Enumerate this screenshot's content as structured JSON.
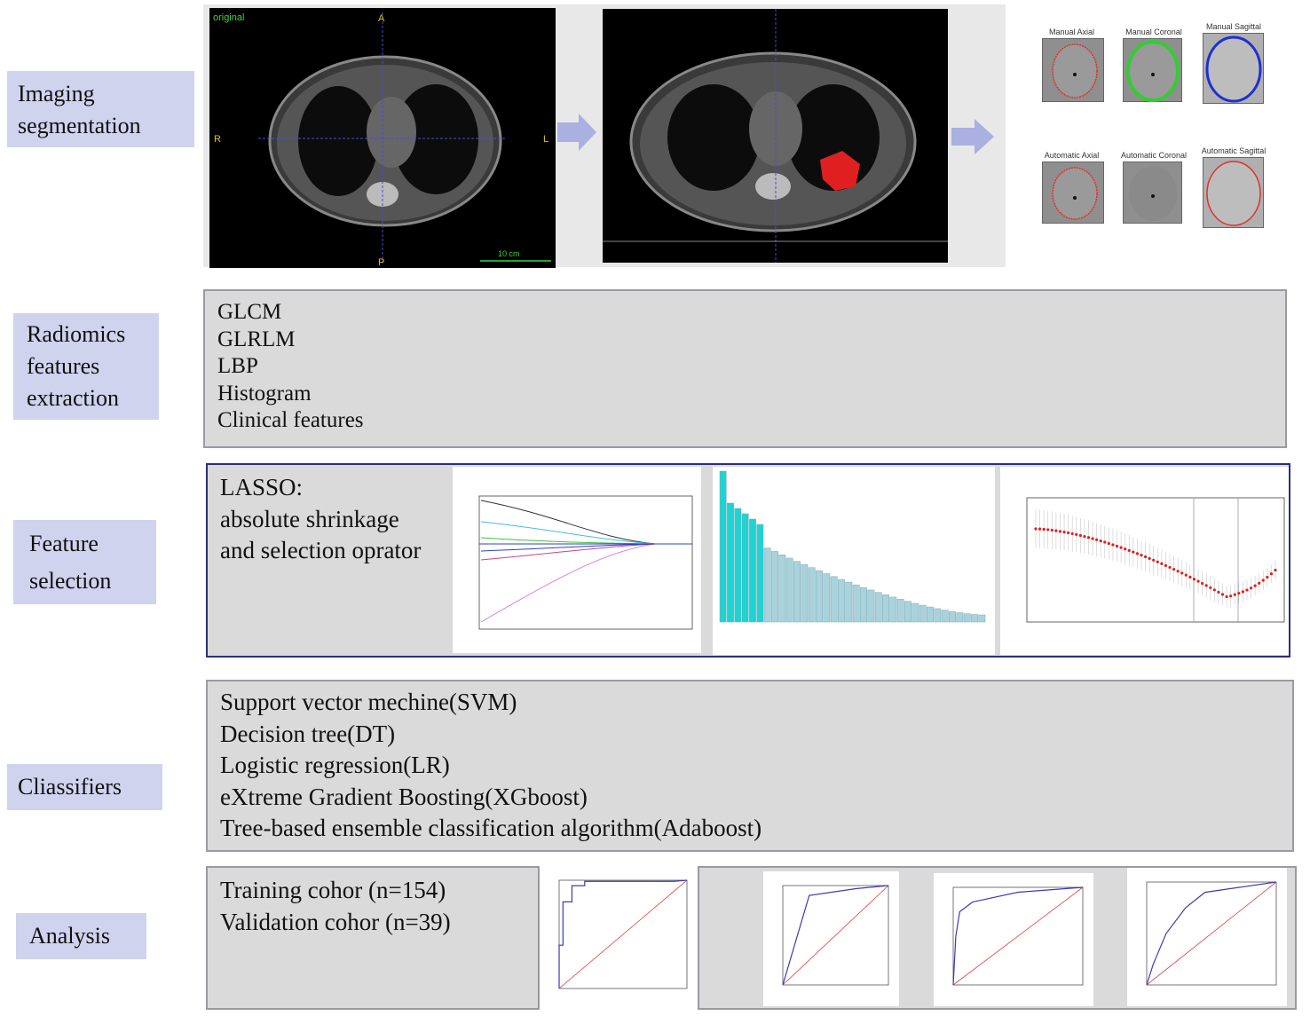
{
  "stages": {
    "segmentation": {
      "label": "Imaging segmentation",
      "ct_original_label": "original",
      "orientation": {
        "top": "A",
        "left": "R",
        "right": "L",
        "bottom": "P"
      },
      "scale_text": "10 cm",
      "thumbnails": [
        {
          "label": "Manual Axial",
          "outline": "#e03030"
        },
        {
          "label": "Manual Coronal",
          "outline": "#33cc33"
        },
        {
          "label": "Manual Sagittal",
          "outline": "#2030d0"
        },
        {
          "label": "Automatic Axial",
          "outline": "#e03030"
        },
        {
          "label": "Automatic Coronal",
          "outline": "#e03030"
        },
        {
          "label": "Automatic Sagittal",
          "outline": "#e03030"
        }
      ]
    },
    "extraction": {
      "label": "Radiomics features extraction",
      "items": [
        "GLCM",
        "GLRLM",
        "LBP",
        "Histogram",
        "Clinical features"
      ]
    },
    "selection": {
      "label": "Feature selection",
      "lasso_lines": [
        "LASSO:",
        "absolute shrinkage",
        "and selection oprator"
      ]
    },
    "classifiers": {
      "label": "Cliassifiers",
      "items": [
        "Support vector mechine(SVM)",
        "Decision tree(DT)",
        "Logistic regression(LR)",
        "eXtreme Gradient Boosting(XGboost)",
        "Tree-based ensemble classification algorithm(Adaboost)"
      ]
    },
    "analysis": {
      "label": "Analysis",
      "items": [
        "Training cohor (n=154)",
        "Validation cohor (n=39)"
      ]
    }
  },
  "colors": {
    "label_bg": "#cfd3ee",
    "box_bg": "#dadada",
    "arrow": "#aab0e0",
    "tumor": "#e02020",
    "bar_highlight": "#1fd3d3",
    "bar_normal": "#a9d3dc",
    "cv_points": "#e02020",
    "roc_curve": "#3b3bb0",
    "roc_diagonal": "#e04040"
  }
}
